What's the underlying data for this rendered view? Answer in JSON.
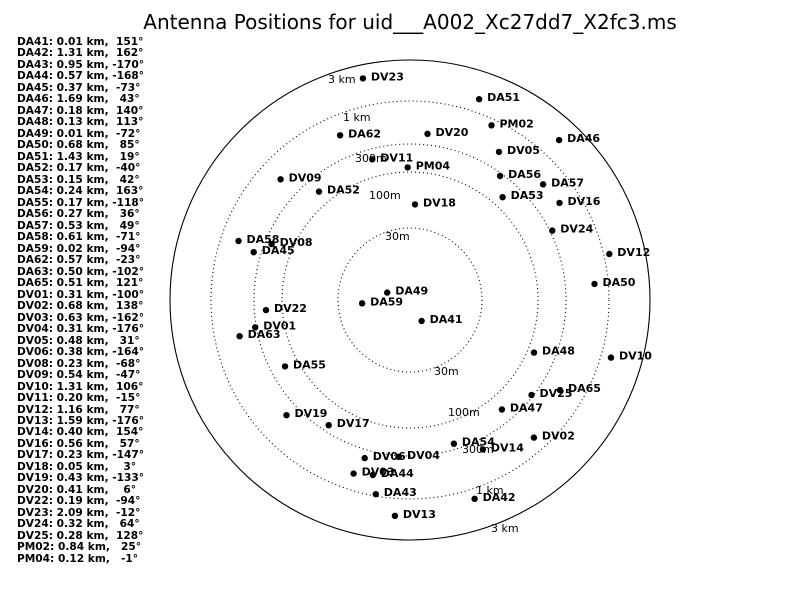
{
  "chart_data": {
    "type": "scatter",
    "title": "Antenna Positions for uid___A002_Xc27dd7_X2fc3.ms",
    "scale": "log-radial",
    "rings": [
      {
        "label": "30m",
        "radius_m": 30
      },
      {
        "label": "100m",
        "radius_m": 100
      },
      {
        "label": "300m",
        "radius_m": 300
      },
      {
        "label": "1 km",
        "radius_m": 1000
      },
      {
        "label": "3 km",
        "radius_m": 3000
      }
    ],
    "antennas": [
      {
        "name": "DA41",
        "km": 0.01,
        "az": 151,
        "summary": "DA41: 0.01 km,  151°"
      },
      {
        "name": "DA42",
        "km": 1.31,
        "az": 162,
        "summary": "DA42: 1.31 km,  162°"
      },
      {
        "name": "DA43",
        "km": 0.95,
        "az": -170,
        "summary": "DA43: 0.95 km, -170°"
      },
      {
        "name": "DA44",
        "km": 0.57,
        "az": -168,
        "summary": "DA44: 0.57 km, -168°"
      },
      {
        "name": "DA45",
        "km": 0.37,
        "az": -73,
        "summary": "DA45: 0.37 km,  -73°"
      },
      {
        "name": "DA46",
        "km": 1.69,
        "az": 43,
        "summary": "DA46: 1.69 km,   43°"
      },
      {
        "name": "DA47",
        "km": 0.18,
        "az": 140,
        "summary": "DA47: 0.18 km,  140°"
      },
      {
        "name": "DA48",
        "km": 0.13,
        "az": 113,
        "summary": "DA48: 0.13 km,  113°"
      },
      {
        "name": "DA49",
        "km": 0.01,
        "az": -72,
        "summary": "DA49: 0.01 km,  -72°"
      },
      {
        "name": "DA50",
        "km": 0.68,
        "az": 85,
        "summary": "DA50: 0.68 km,   85°"
      },
      {
        "name": "DA51",
        "km": 1.43,
        "az": 19,
        "summary": "DA51: 1.43 km,   19°"
      },
      {
        "name": "DA52",
        "km": 0.17,
        "az": -40,
        "summary": "DA52: 0.17 km,  -40°"
      },
      {
        "name": "DA53",
        "km": 0.15,
        "az": 42,
        "summary": "DA53: 0.15 km,   42°"
      },
      {
        "name": "DA54",
        "km": 0.24,
        "az": 163,
        "summary": "DA54: 0.24 km,  163°"
      },
      {
        "name": "DA55",
        "km": 0.17,
        "az": -118,
        "summary": "DA55: 0.17 km, -118°"
      },
      {
        "name": "DA56",
        "km": 0.27,
        "az": 36,
        "summary": "DA56: 0.27 km,   36°"
      },
      {
        "name": "DA57",
        "km": 0.53,
        "az": 49,
        "summary": "DA57: 0.53 km,   49°"
      },
      {
        "name": "DA58",
        "km": 0.61,
        "az": -71,
        "summary": "DA58: 0.61 km,  -71°"
      },
      {
        "name": "DA59",
        "km": 0.02,
        "az": -94,
        "summary": "DA59: 0.02 km,  -94°"
      },
      {
        "name": "DA62",
        "km": 0.57,
        "az": -23,
        "summary": "DA62: 0.57 km,  -23°"
      },
      {
        "name": "DA63",
        "km": 0.5,
        "az": -102,
        "summary": "DA63: 0.50 km, -102°"
      },
      {
        "name": "DA65",
        "km": 0.51,
        "az": 121,
        "summary": "DA65: 0.51 km,  121°"
      },
      {
        "name": "DV01",
        "km": 0.31,
        "az": -100,
        "summary": "DV01: 0.31 km, -100°"
      },
      {
        "name": "DV02",
        "km": 0.68,
        "az": 138,
        "summary": "DV02: 0.68 km,  138°"
      },
      {
        "name": "DV03",
        "km": 0.63,
        "az": -162,
        "summary": "DV03: 0.63 km, -162°"
      },
      {
        "name": "DV04",
        "km": 0.31,
        "az": -176,
        "summary": "DV04: 0.31 km, -176°"
      },
      {
        "name": "DV05",
        "km": 0.48,
        "az": 31,
        "summary": "DV05: 0.48 km,   31°"
      },
      {
        "name": "DV06",
        "km": 0.38,
        "az": -164,
        "summary": "DV06: 0.38 km, -164°"
      },
      {
        "name": "DV08",
        "km": 0.23,
        "az": -68,
        "summary": "DV08: 0.23 km,  -68°"
      },
      {
        "name": "DV09",
        "km": 0.54,
        "az": -47,
        "summary": "DV09: 0.54 km,  -47°"
      },
      {
        "name": "DV10",
        "km": 1.31,
        "az": 106,
        "summary": "DV10: 1.31 km,  106°"
      },
      {
        "name": "DV11",
        "km": 0.2,
        "az": -15,
        "summary": "DV11: 0.20 km,  -15°"
      },
      {
        "name": "DV12",
        "km": 1.16,
        "az": 77,
        "summary": "DV12: 1.16 km,   77°"
      },
      {
        "name": "DV13",
        "km": 1.59,
        "az": -176,
        "summary": "DV13: 1.59 km, -176°"
      },
      {
        "name": "DV14",
        "km": 0.4,
        "az": 154,
        "summary": "DV14: 0.40 km,  154°"
      },
      {
        "name": "DV16",
        "km": 0.56,
        "az": 57,
        "summary": "DV16: 0.56 km,   57°"
      },
      {
        "name": "DV17",
        "km": 0.23,
        "az": -147,
        "summary": "DV17: 0.23 km, -147°"
      },
      {
        "name": "DV18",
        "km": 0.05,
        "az": 3,
        "summary": "DV18: 0.05 km,    3°"
      },
      {
        "name": "DV19",
        "km": 0.43,
        "az": -133,
        "summary": "DV19: 0.43 km, -133°"
      },
      {
        "name": "DV20",
        "km": 0.41,
        "az": 6,
        "summary": "DV20: 0.41 km,    6°"
      },
      {
        "name": "DV22",
        "km": 0.19,
        "az": -94,
        "summary": "DV22: 0.19 km,  -94°"
      },
      {
        "name": "DV23",
        "km": 2.09,
        "az": -12,
        "summary": "DV23: 2.09 km,  -12°"
      },
      {
        "name": "DV24",
        "km": 0.32,
        "az": 64,
        "summary": "DV24: 0.32 km,   64°"
      },
      {
        "name": "DV25",
        "km": 0.28,
        "az": 128,
        "summary": "DV25: 0.28 km,  128°"
      },
      {
        "name": "PM02",
        "km": 0.84,
        "az": 25,
        "summary": "PM02: 0.84 km,   25°"
      },
      {
        "name": "PM04",
        "km": 0.12,
        "az": -1,
        "summary": "PM04: 0.12 km,   -1°"
      }
    ]
  }
}
